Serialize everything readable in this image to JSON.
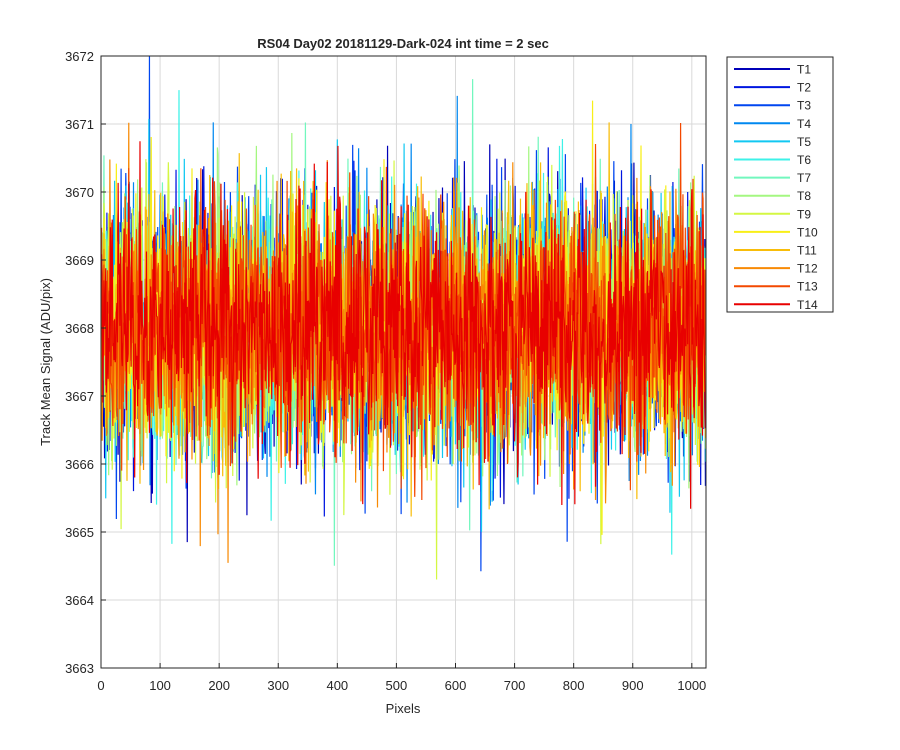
{
  "chart_data": {
    "type": "line",
    "title": "RS04 Day02 20181129-Dark-024 int time = 2 sec",
    "xlabel": "Pixels",
    "ylabel": "Track Mean Signal (ADU/pix)",
    "xlim": [
      0,
      1024
    ],
    "ylim": [
      3663,
      3672
    ],
    "xticks": [
      0,
      100,
      200,
      300,
      400,
      500,
      600,
      700,
      800,
      900,
      1000
    ],
    "yticks": [
      3663,
      3664,
      3665,
      3666,
      3667,
      3668,
      3669,
      3670,
      3671,
      3672
    ],
    "grid": true,
    "legend_position": "outside-top-right",
    "series_mean": 3668.0,
    "series_sigma": 0.9,
    "n_pixels": 1024,
    "series": [
      {
        "name": "T1",
        "color": "#0000b8"
      },
      {
        "name": "T2",
        "color": "#0016e0"
      },
      {
        "name": "T3",
        "color": "#0046f0"
      },
      {
        "name": "T4",
        "color": "#0088f0"
      },
      {
        "name": "T5",
        "color": "#12c8f2"
      },
      {
        "name": "T6",
        "color": "#3ef2e8"
      },
      {
        "name": "T7",
        "color": "#72f7be"
      },
      {
        "name": "T8",
        "color": "#a4f780"
      },
      {
        "name": "T9",
        "color": "#d4f743"
      },
      {
        "name": "T10",
        "color": "#f8ef18"
      },
      {
        "name": "T11",
        "color": "#f8bd0a"
      },
      {
        "name": "T12",
        "color": "#f88a04"
      },
      {
        "name": "T13",
        "color": "#f34800"
      },
      {
        "name": "T14",
        "color": "#e80000"
      }
    ]
  }
}
